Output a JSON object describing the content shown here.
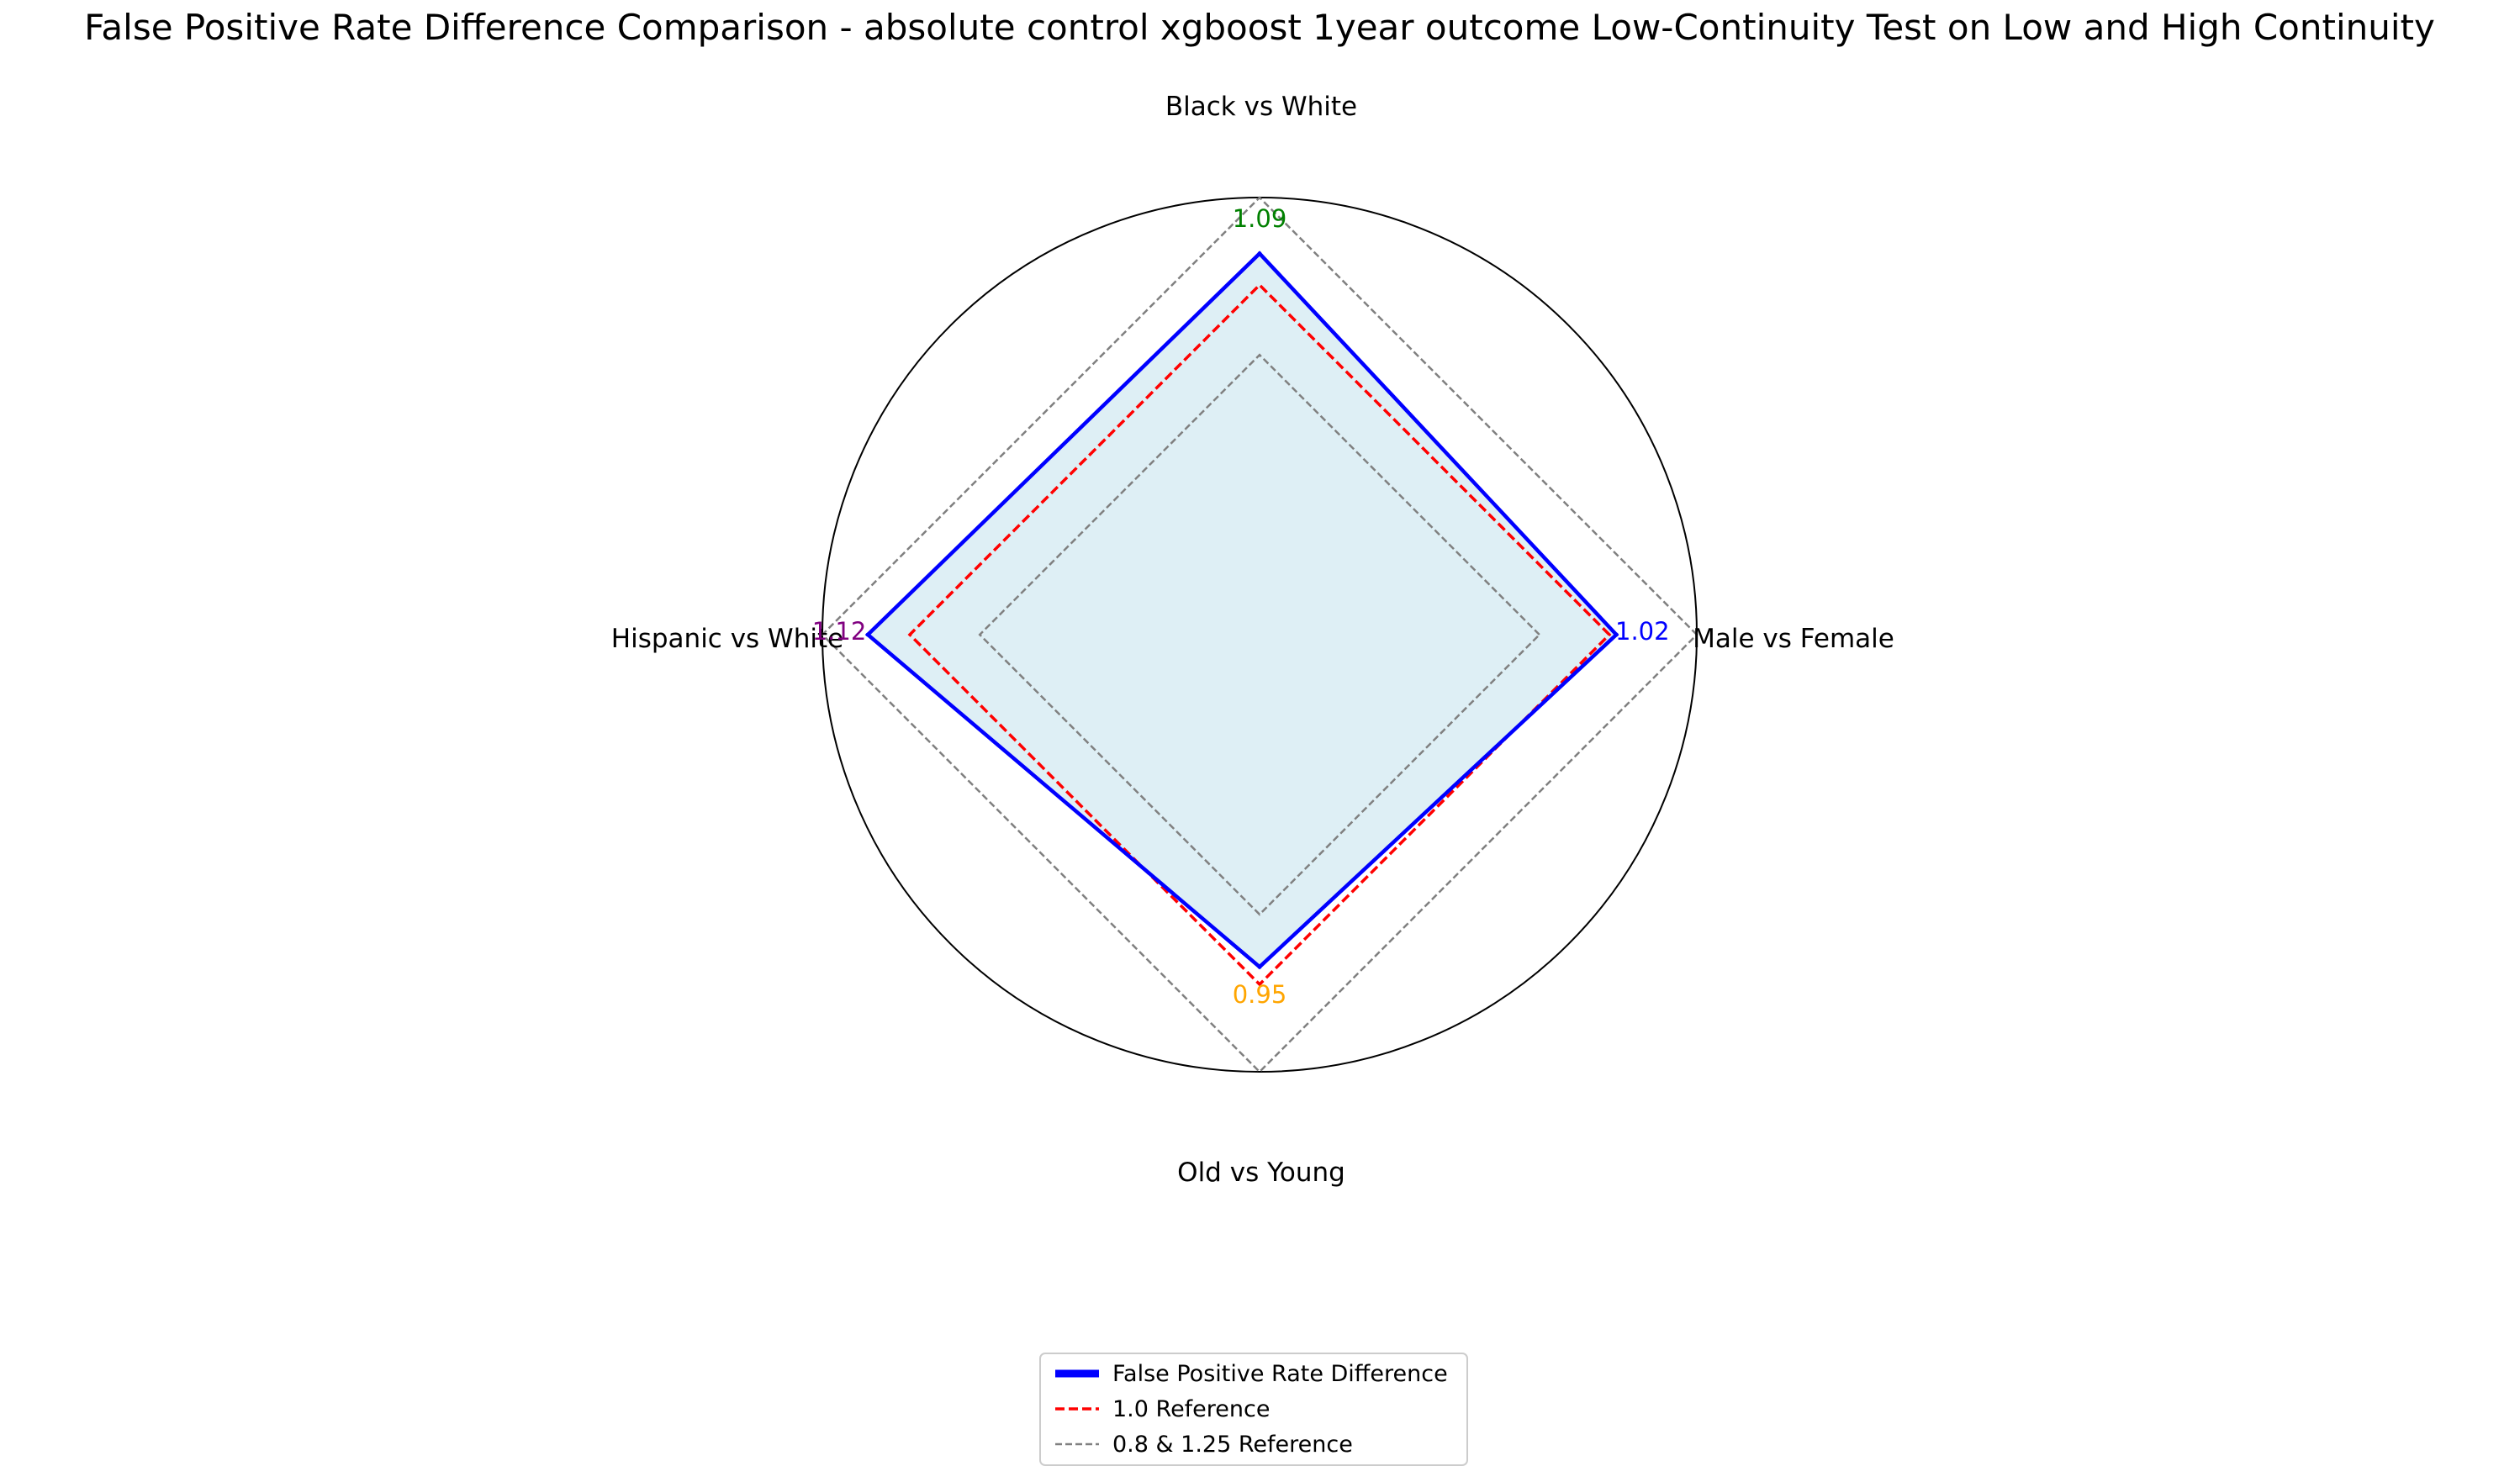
{
  "chart_data": {
    "type": "radar",
    "title": "False Positive Rate Difference Comparison - absolute control xgboost 1year outcome Low-Continuity Test on Low and High Continuity",
    "categories": [
      "Male vs Female",
      "Black vs White",
      "Hispanic vs White",
      "Old vs Young"
    ],
    "series": [
      {
        "name": "False Positive Rate Difference",
        "values": [
          1.02,
          1.09,
          1.12,
          0.95
        ],
        "color": "#0000ff",
        "fill": "#add8e6"
      }
    ],
    "value_labels": [
      "1.02",
      "1.09",
      "1.12",
      "0.95"
    ],
    "value_label_colors": [
      "#0000ff",
      "#008000",
      "#800080",
      "#ffa500"
    ],
    "references": [
      {
        "name": "1.0 Reference",
        "value": 1.0,
        "color": "#ff0000",
        "style": "dashed"
      },
      {
        "name": "0.8 & 1.25 Reference",
        "values": [
          0.8,
          1.25
        ],
        "color": "#808080",
        "style": "dashed"
      }
    ],
    "rlim": [
      0,
      1.25
    ],
    "grid": false,
    "legend_position": "bottom-center"
  }
}
